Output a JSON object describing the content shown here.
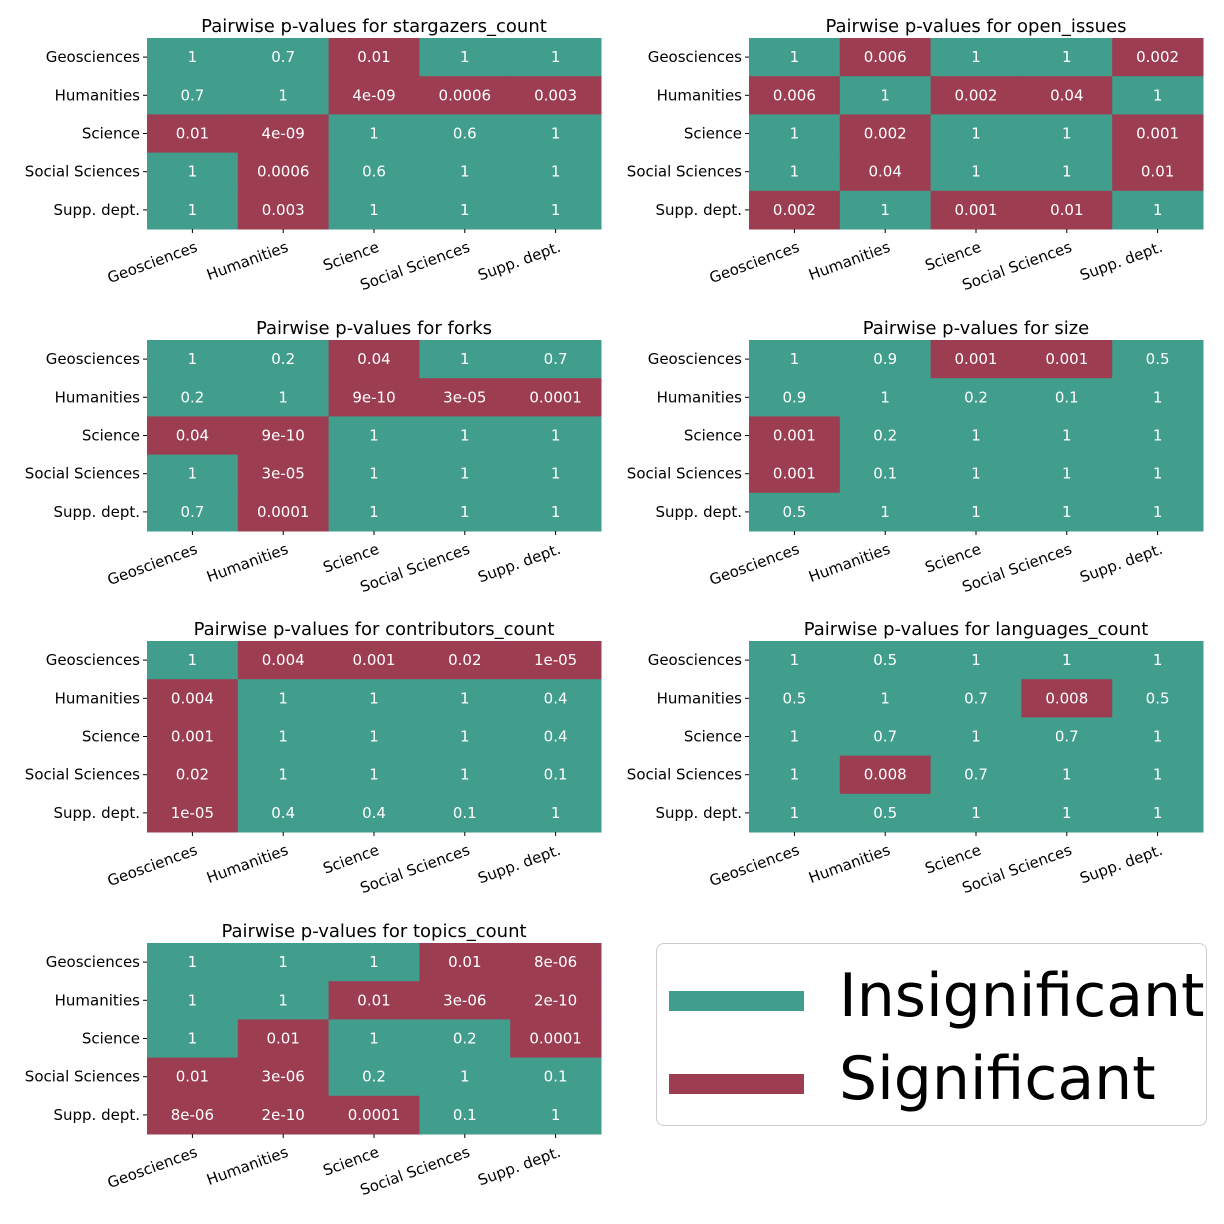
{
  "chart_data": {
    "type": "heatmap",
    "groups": [
      "Geosciences",
      "Humanities",
      "Science",
      "Social Sciences",
      "Supp. dept."
    ],
    "significance_threshold": 0.05,
    "colors": {
      "Insignificant": "#419e8c",
      "Significant": "#9c3d52"
    },
    "legend": {
      "placement": "bottom-right",
      "entries": [
        "Insignificant",
        "Significant"
      ]
    },
    "panels": [
      {
        "title": "Pairwise p-values for stargazers_count",
        "values": [
          [
            "1",
            "0.7",
            "0.01",
            "1",
            "1"
          ],
          [
            "0.7",
            "1",
            "4e-09",
            "0.0006",
            "0.003"
          ],
          [
            "0.01",
            "4e-09",
            "1",
            "0.6",
            "1"
          ],
          [
            "1",
            "0.0006",
            "0.6",
            "1",
            "1"
          ],
          [
            "1",
            "0.003",
            "1",
            "1",
            "1"
          ]
        ]
      },
      {
        "title": "Pairwise p-values for open_issues",
        "values": [
          [
            "1",
            "0.006",
            "1",
            "1",
            "0.002"
          ],
          [
            "0.006",
            "1",
            "0.002",
            "0.04",
            "1"
          ],
          [
            "1",
            "0.002",
            "1",
            "1",
            "0.001"
          ],
          [
            "1",
            "0.04",
            "1",
            "1",
            "0.01"
          ],
          [
            "0.002",
            "1",
            "0.001",
            "0.01",
            "1"
          ]
        ]
      },
      {
        "title": "Pairwise p-values for forks",
        "values": [
          [
            "1",
            "0.2",
            "0.04",
            "1",
            "0.7"
          ],
          [
            "0.2",
            "1",
            "9e-10",
            "3e-05",
            "0.0001"
          ],
          [
            "0.04",
            "9e-10",
            "1",
            "1",
            "1"
          ],
          [
            "1",
            "3e-05",
            "1",
            "1",
            "1"
          ],
          [
            "0.7",
            "0.0001",
            "1",
            "1",
            "1"
          ]
        ]
      },
      {
        "title": "Pairwise p-values for size",
        "values": [
          [
            "1",
            "0.9",
            "0.001",
            "0.001",
            "0.5"
          ],
          [
            "0.9",
            "1",
            "0.2",
            "0.1",
            "1"
          ],
          [
            "0.001",
            "0.2",
            "1",
            "1",
            "1"
          ],
          [
            "0.001",
            "0.1",
            "1",
            "1",
            "1"
          ],
          [
            "0.5",
            "1",
            "1",
            "1",
            "1"
          ]
        ]
      },
      {
        "title": "Pairwise p-values for contributors_count",
        "values": [
          [
            "1",
            "0.004",
            "0.001",
            "0.02",
            "1e-05"
          ],
          [
            "0.004",
            "1",
            "1",
            "1",
            "0.4"
          ],
          [
            "0.001",
            "1",
            "1",
            "1",
            "0.4"
          ],
          [
            "0.02",
            "1",
            "1",
            "1",
            "0.1"
          ],
          [
            "1e-05",
            "0.4",
            "0.4",
            "0.1",
            "1"
          ]
        ]
      },
      {
        "title": "Pairwise p-values for languages_count",
        "values": [
          [
            "1",
            "0.5",
            "1",
            "1",
            "1"
          ],
          [
            "0.5",
            "1",
            "0.7",
            "0.008",
            "0.5"
          ],
          [
            "1",
            "0.7",
            "1",
            "0.7",
            "1"
          ],
          [
            "1",
            "0.008",
            "0.7",
            "1",
            "1"
          ],
          [
            "1",
            "0.5",
            "1",
            "1",
            "1"
          ]
        ]
      },
      {
        "title": "Pairwise p-values for topics_count",
        "values": [
          [
            "1",
            "1",
            "1",
            "0.01",
            "8e-06"
          ],
          [
            "1",
            "1",
            "0.01",
            "3e-06",
            "2e-10"
          ],
          [
            "1",
            "0.01",
            "1",
            "0.2",
            "0.0001"
          ],
          [
            "0.01",
            "3e-06",
            "0.2",
            "1",
            "0.1"
          ],
          [
            "8e-06",
            "2e-10",
            "0.0001",
            "0.1",
            "1"
          ]
        ]
      }
    ]
  }
}
